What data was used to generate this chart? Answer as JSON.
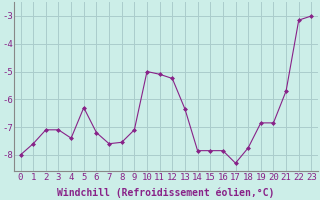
{
  "x": [
    0,
    1,
    2,
    3,
    4,
    5,
    6,
    7,
    8,
    9,
    10,
    11,
    12,
    13,
    14,
    15,
    16,
    17,
    18,
    19,
    20,
    21,
    22,
    23
  ],
  "y": [
    -8.0,
    -7.6,
    -7.1,
    -7.1,
    -7.4,
    -6.3,
    -7.2,
    -7.6,
    -7.55,
    -7.1,
    -5.0,
    -5.1,
    -5.25,
    -6.35,
    -7.85,
    -7.85,
    -7.85,
    -8.3,
    -7.75,
    -6.85,
    -6.85,
    -5.7,
    -3.15,
    -3.0
  ],
  "line_color": "#882288",
  "marker": "D",
  "markersize": 2,
  "linewidth": 0.8,
  "bg_color": "#cceee8",
  "grid_color": "#aacccc",
  "xlabel": "Windchill (Refroidissement éolien,°C)",
  "xlabel_fontsize": 7,
  "ylabel_ticks": [
    -3,
    -4,
    -5,
    -6,
    -7,
    -8
  ],
  "ylim": [
    -8.6,
    -2.5
  ],
  "xlim": [
    -0.5,
    23.5
  ],
  "tick_fontsize": 6.5,
  "xtick_labels": [
    "0",
    "1",
    "2",
    "3",
    "4",
    "5",
    "6",
    "7",
    "8",
    "9",
    "10",
    "11",
    "12",
    "13",
    "14",
    "15",
    "16",
    "17",
    "18",
    "19",
    "20",
    "21",
    "22",
    "23"
  ]
}
